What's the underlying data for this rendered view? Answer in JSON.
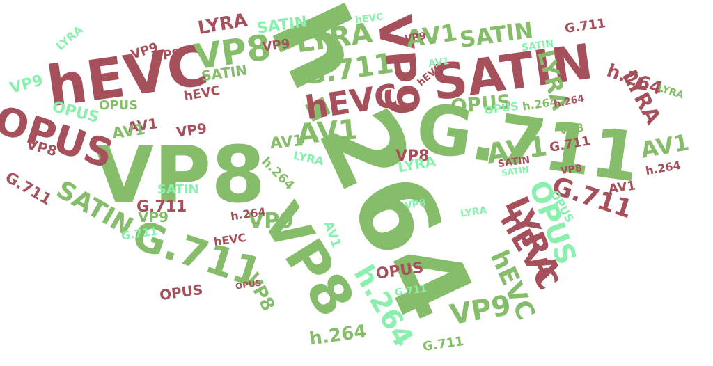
{
  "palette": {
    "red": "#A6505B",
    "green": "#86BD6A",
    "light_green": "#8AF0AE"
  },
  "words": [
    {
      "text": "h.264",
      "color": "green"
    },
    {
      "text": "VP8",
      "color": "green"
    },
    {
      "text": "G.711",
      "color": "green"
    },
    {
      "text": "hEVC",
      "color": "red"
    },
    {
      "text": "SATIN",
      "color": "red"
    },
    {
      "text": "VP9",
      "color": "red"
    },
    {
      "text": "OPUS",
      "color": "red"
    },
    {
      "text": "VP8",
      "color": "green"
    },
    {
      "text": "VP8",
      "color": "green"
    },
    {
      "text": "LYRA",
      "color": "green"
    },
    {
      "text": "LYRA",
      "color": "green"
    },
    {
      "text": "AV1",
      "color": "green"
    },
    {
      "text": "SATIN",
      "color": "green"
    },
    {
      "text": "G.711",
      "color": "green"
    },
    {
      "text": "hEVC",
      "color": "red"
    },
    {
      "text": "hEVC",
      "color": "red"
    },
    {
      "text": "AV1",
      "color": "green"
    },
    {
      "text": "AV1",
      "color": "green"
    },
    {
      "text": "G.711",
      "color": "green"
    },
    {
      "text": "LYRA",
      "color": "red"
    },
    {
      "text": "OPUS",
      "color": "light_green"
    },
    {
      "text": "hEVC",
      "color": "green"
    },
    {
      "text": "h.264",
      "color": "light_green"
    },
    {
      "text": "VP9",
      "color": "green"
    },
    {
      "text": "SATIN",
      "color": "green"
    },
    {
      "text": "G.711",
      "color": "red"
    },
    {
      "text": "LYRA",
      "color": "red"
    },
    {
      "text": "OPUS",
      "color": "green"
    },
    {
      "text": "h.264",
      "color": "red"
    },
    {
      "text": "AV1",
      "color": "green"
    },
    {
      "text": "VP9",
      "color": "green"
    },
    {
      "text": "VP8",
      "color": "green"
    },
    {
      "text": "h.264",
      "color": "green"
    },
    {
      "text": "LYRA",
      "color": "red"
    },
    {
      "text": "SATIN",
      "color": "light_green"
    },
    {
      "text": "OPUS",
      "color": "light_green"
    },
    {
      "text": "VP9",
      "color": "light_green"
    },
    {
      "text": "OPUS",
      "color": "red"
    },
    {
      "text": "AV1",
      "color": "green"
    },
    {
      "text": "VP8",
      "color": "red"
    },
    {
      "text": "G.711",
      "color": "red"
    },
    {
      "text": "AV1",
      "color": "red"
    },
    {
      "text": "VP8",
      "color": "red"
    },
    {
      "text": "G.711",
      "color": "red"
    },
    {
      "text": "LYRA",
      "color": "light_green"
    },
    {
      "text": "SATIN",
      "color": "green"
    },
    {
      "text": "VP9",
      "color": "green"
    },
    {
      "text": "OPUS",
      "color": "red"
    },
    {
      "text": "h.264",
      "color": "green"
    },
    {
      "text": "AV1",
      "color": "light_green"
    },
    {
      "text": "hEVC",
      "color": "red"
    },
    {
      "text": "LYRA",
      "color": "light_green"
    },
    {
      "text": "h.264",
      "color": "green"
    },
    {
      "text": "G.711",
      "color": "red"
    },
    {
      "text": "OPUS",
      "color": "light_green"
    },
    {
      "text": "VP9",
      "color": "red"
    },
    {
      "text": "AV1",
      "color": "green"
    },
    {
      "text": "SATIN",
      "color": "light_green"
    },
    {
      "text": "G.711",
      "color": "light_green"
    },
    {
      "text": "OPUS",
      "color": "green"
    },
    {
      "text": "hEVC",
      "color": "red"
    },
    {
      "text": "h.264",
      "color": "red"
    },
    {
      "text": "VP9",
      "color": "red"
    },
    {
      "text": "LYRA",
      "color": "light_green"
    },
    {
      "text": "G.711",
      "color": "red"
    },
    {
      "text": "h.264",
      "color": "red"
    },
    {
      "text": "VP9",
      "color": "red"
    },
    {
      "text": "SATIN",
      "color": "red"
    },
    {
      "text": "AV1",
      "color": "red"
    },
    {
      "text": "VP8",
      "color": "green"
    },
    {
      "text": "VP9",
      "color": "red"
    },
    {
      "text": "OPUS",
      "color": "light_green"
    },
    {
      "text": "SATIN",
      "color": "light_green"
    },
    {
      "text": "VP8",
      "color": "red"
    },
    {
      "text": "hEVC",
      "color": "red"
    },
    {
      "text": "h.264",
      "color": "red"
    },
    {
      "text": "G.711",
      "color": "light_green"
    },
    {
      "text": "VP8",
      "color": "light_green"
    },
    {
      "text": "LYRA",
      "color": "light_green"
    },
    {
      "text": "SATIN",
      "color": "light_green"
    },
    {
      "text": "VP9",
      "color": "red"
    },
    {
      "text": "OPUS",
      "color": "red"
    },
    {
      "text": "AV1",
      "color": "light_green"
    },
    {
      "text": "G.711",
      "color": "green"
    },
    {
      "text": "hEVC",
      "color": "light_green"
    },
    {
      "text": "LYRA",
      "color": "green"
    }
  ]
}
